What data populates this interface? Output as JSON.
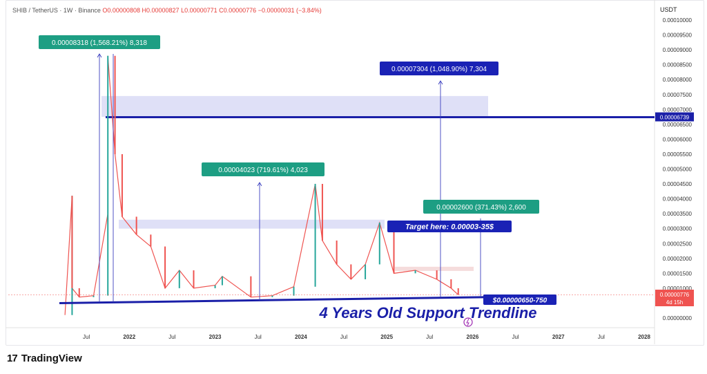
{
  "header": {
    "symbol": "SHIB / TetherUS · 1W · Binance",
    "o": "O0.00000808",
    "h": "H0.00000827",
    "l": "L0.00000771",
    "c": "C0.00000776",
    "chg": "−0.00000031 (−3.84%)"
  },
  "axis_unit": "USDT",
  "brand": {
    "logo": "17",
    "name": "TradingView"
  },
  "colors": {
    "up": "#26a69a",
    "down": "#ef5350",
    "navy": "#1a1fa8",
    "band": "#dfe0f7",
    "pink_band": "#f5dcdc",
    "teal_box": "#1d9e83",
    "blue_box": "#1a22b5"
  },
  "annotations": {
    "move1": "0.00008318 (1,568.21%) 8,318",
    "move2": "0.00004023 (719.61%) 4,023",
    "move3": "0.00007304 (1,048.90%) 7,304",
    "move4": "0.00002600 (371.43%) 2,600",
    "target": "Target here: 0.00003-35$",
    "support": "$0.00000650-750",
    "trendline": "4 Years Old Support Trendline",
    "level": "0.00006739",
    "last_price": "0.00000776",
    "countdown": "4d 15h"
  },
  "chart_data": {
    "type": "line",
    "title": "SHIB / TetherUS · 1W · Binance",
    "ylabel": "USDT",
    "ylim": [
      0,
      0.0001
    ],
    "y_ticks": [
      "0.00010000",
      "0.00009500",
      "0.00009000",
      "0.00008500",
      "0.00008000",
      "0.00007500",
      "0.00007000",
      "0.00006500",
      "0.00006000",
      "0.00005500",
      "0.00005000",
      "0.00004500",
      "0.00004000",
      "0.00003500",
      "0.00003000",
      "0.00002500",
      "0.00002000",
      "0.00001500",
      "0.00001000",
      "0.00000000"
    ],
    "x_ticks": [
      "Jul",
      "2022",
      "Jul",
      "2023",
      "Jul",
      "2024",
      "Jul",
      "2025",
      "Jul",
      "2026",
      "Jul",
      "2027",
      "Jul",
      "2028"
    ],
    "price_path": [
      {
        "x": "2021-04",
        "y": 1e-06
      },
      {
        "x": "2021-05",
        "y": 4.1e-05
      },
      {
        "x": "2021-05",
        "y": 1e-05
      },
      {
        "x": "2021-06",
        "y": 7e-06
      },
      {
        "x": "2021-08",
        "y": 7.5e-06
      },
      {
        "x": "2021-10",
        "y": 3.5e-05
      },
      {
        "x": "2021-10",
        "y": 8.8e-05
      },
      {
        "x": "2021-11",
        "y": 5.5e-05
      },
      {
        "x": "2021-12",
        "y": 3.4e-05
      },
      {
        "x": "2022-02",
        "y": 2.8e-05
      },
      {
        "x": "2022-04",
        "y": 2.4e-05
      },
      {
        "x": "2022-06",
        "y": 1e-05
      },
      {
        "x": "2022-08",
        "y": 1.6e-05
      },
      {
        "x": "2022-10",
        "y": 1e-05
      },
      {
        "x": "2023-01",
        "y": 1.1e-05
      },
      {
        "x": "2023-02",
        "y": 1.4e-05
      },
      {
        "x": "2023-06",
        "y": 7e-06
      },
      {
        "x": "2023-09",
        "y": 7.5e-06
      },
      {
        "x": "2023-12",
        "y": 1.05e-05
      },
      {
        "x": "2024-03",
        "y": 4.5e-05
      },
      {
        "x": "2024-04",
        "y": 2.6e-05
      },
      {
        "x": "2024-06",
        "y": 1.8e-05
      },
      {
        "x": "2024-08",
        "y": 1.3e-05
      },
      {
        "x": "2024-10",
        "y": 1.8e-05
      },
      {
        "x": "2024-12",
        "y": 3.2e-05
      },
      {
        "x": "2025-02",
        "y": 1.5e-05
      },
      {
        "x": "2025-05",
        "y": 1.6e-05
      },
      {
        "x": "2025-08",
        "y": 1.3e-05
      },
      {
        "x": "2025-10",
        "y": 1e-05
      },
      {
        "x": "2025-11",
        "y": 7.8e-06
      }
    ],
    "levels": {
      "resistance": 6.739e-05,
      "target_zone": [
        3e-05,
        3.5e-05
      ],
      "support_zone": [
        6.5e-06,
        7.5e-06
      ]
    }
  }
}
